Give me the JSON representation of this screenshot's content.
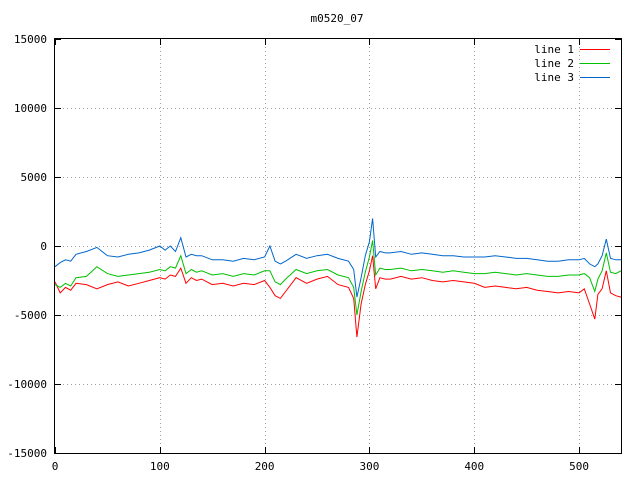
{
  "chart_data": {
    "type": "line",
    "title": "m0520_07",
    "xlabel": "",
    "ylabel": "",
    "xlim": [
      0,
      540
    ],
    "ylim": [
      -15000,
      15000
    ],
    "x_ticks": [
      0,
      100,
      200,
      300,
      400,
      500
    ],
    "y_ticks": [
      -15000,
      -10000,
      -5000,
      0,
      5000,
      10000,
      15000
    ],
    "grid": true,
    "legend_position": "top-right",
    "series": [
      {
        "name": "line 1",
        "color": "#ff0000",
        "x": [
          0,
          5,
          10,
          15,
          20,
          30,
          40,
          50,
          60,
          70,
          80,
          90,
          100,
          105,
          110,
          115,
          120,
          125,
          130,
          135,
          140,
          150,
          160,
          170,
          180,
          190,
          200,
          205,
          210,
          215,
          220,
          230,
          240,
          250,
          260,
          270,
          280,
          285,
          288,
          292,
          296,
          300,
          303,
          306,
          310,
          315,
          320,
          330,
          340,
          350,
          360,
          370,
          380,
          390,
          400,
          410,
          420,
          430,
          440,
          450,
          460,
          470,
          480,
          490,
          500,
          505,
          510,
          515,
          518,
          522,
          526,
          530,
          535,
          540
        ],
        "y": [
          -2600,
          -3400,
          -3000,
          -3200,
          -2700,
          -2800,
          -3100,
          -2800,
          -2600,
          -2900,
          -2700,
          -2500,
          -2300,
          -2400,
          -2100,
          -2200,
          -1600,
          -2700,
          -2300,
          -2500,
          -2400,
          -2800,
          -2700,
          -2900,
          -2700,
          -2800,
          -2500,
          -3000,
          -3600,
          -3800,
          -3300,
          -2300,
          -2700,
          -2400,
          -2200,
          -2800,
          -3000,
          -3800,
          -6600,
          -4200,
          -2800,
          -1800,
          -700,
          -3100,
          -2300,
          -2400,
          -2400,
          -2200,
          -2400,
          -2300,
          -2500,
          -2600,
          -2500,
          -2600,
          -2700,
          -3000,
          -2900,
          -3000,
          -3100,
          -3000,
          -3200,
          -3300,
          -3400,
          -3300,
          -3400,
          -3100,
          -4200,
          -5300,
          -3500,
          -3100,
          -1800,
          -3400,
          -3600,
          -3700
        ]
      },
      {
        "name": "line 2",
        "color": "#00c000",
        "x": [
          0,
          5,
          10,
          15,
          20,
          30,
          40,
          50,
          60,
          70,
          80,
          90,
          100,
          105,
          110,
          115,
          120,
          125,
          130,
          135,
          140,
          150,
          160,
          170,
          180,
          190,
          200,
          205,
          210,
          215,
          220,
          230,
          240,
          250,
          260,
          270,
          280,
          285,
          288,
          292,
          296,
          300,
          303,
          306,
          310,
          315,
          320,
          330,
          340,
          350,
          360,
          370,
          380,
          390,
          400,
          410,
          420,
          430,
          440,
          450,
          460,
          470,
          480,
          490,
          500,
          505,
          510,
          515,
          518,
          522,
          526,
          530,
          535,
          540
        ],
        "y": [
          -2800,
          -3000,
          -2700,
          -2900,
          -2300,
          -2200,
          -1500,
          -2000,
          -2200,
          -2100,
          -2000,
          -1900,
          -1700,
          -1800,
          -1500,
          -1600,
          -700,
          -2000,
          -1700,
          -1900,
          -1800,
          -2100,
          -2000,
          -2200,
          -2000,
          -2100,
          -1800,
          -1800,
          -2600,
          -2800,
          -2400,
          -1700,
          -2000,
          -1800,
          -1700,
          -2100,
          -2300,
          -3000,
          -5000,
          -3300,
          -1900,
          -800,
          400,
          -2100,
          -1600,
          -1700,
          -1700,
          -1600,
          -1800,
          -1700,
          -1800,
          -1900,
          -1800,
          -1900,
          -2000,
          -2000,
          -1900,
          -2000,
          -2100,
          -2000,
          -2100,
          -2200,
          -2200,
          -2100,
          -2100,
          -2000,
          -2300,
          -3300,
          -2400,
          -1800,
          -500,
          -1900,
          -2000,
          -1800
        ]
      },
      {
        "name": "line 3",
        "color": "#0066cc",
        "x": [
          0,
          5,
          10,
          15,
          20,
          30,
          40,
          50,
          60,
          70,
          80,
          90,
          100,
          105,
          110,
          115,
          120,
          125,
          130,
          135,
          140,
          150,
          160,
          170,
          180,
          190,
          200,
          205,
          210,
          215,
          220,
          230,
          240,
          250,
          260,
          270,
          280,
          285,
          288,
          292,
          296,
          300,
          303,
          306,
          310,
          315,
          320,
          330,
          340,
          350,
          360,
          370,
          380,
          390,
          400,
          410,
          420,
          430,
          440,
          450,
          460,
          470,
          480,
          490,
          500,
          505,
          510,
          515,
          518,
          522,
          526,
          530,
          535,
          540
        ],
        "y": [
          -1500,
          -1200,
          -1000,
          -1100,
          -600,
          -400,
          -100,
          -700,
          -800,
          -600,
          -500,
          -300,
          0,
          -300,
          0,
          -400,
          600,
          -800,
          -600,
          -700,
          -700,
          -1000,
          -1000,
          -1100,
          -900,
          -1000,
          -800,
          0,
          -1100,
          -1300,
          -1100,
          -600,
          -900,
          -700,
          -600,
          -900,
          -1100,
          -1700,
          -3700,
          -2300,
          -700,
          300,
          2000,
          -800,
          -400,
          -500,
          -500,
          -400,
          -600,
          -500,
          -600,
          -700,
          -700,
          -800,
          -800,
          -800,
          -700,
          -800,
          -900,
          -900,
          -1000,
          -1100,
          -1100,
          -1000,
          -1000,
          -900,
          -1300,
          -1500,
          -1300,
          -700,
          500,
          -900,
          -1000,
          -1000
        ]
      }
    ]
  }
}
